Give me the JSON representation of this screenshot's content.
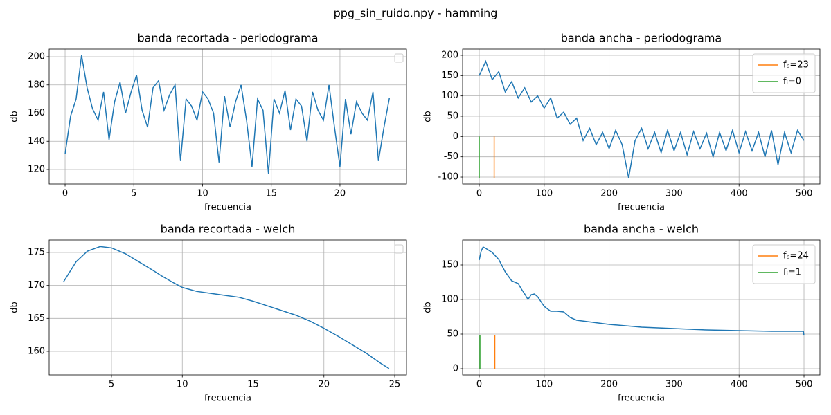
{
  "title": "ppg_sin_ruido.npy - hamming",
  "chart_data": [
    {
      "type": "line",
      "title": "banda recortada - periodograma",
      "xlabel": "frecuencia",
      "ylabel": "db",
      "xlim": [
        -1.16,
        24.84
      ],
      "ylim": [
        109.7,
        205.4
      ],
      "xticks": [
        0,
        5,
        10,
        15,
        20
      ],
      "yticks": [
        120,
        140,
        160,
        180,
        200
      ],
      "grid": true,
      "legend": "upper right",
      "series": [
        {
          "color": "#1f77b4",
          "x": [
            0,
            0.4,
            0.8,
            1.2,
            1.6,
            2,
            2.4,
            2.8,
            3.2,
            3.6,
            4,
            4.4,
            4.8,
            5.2,
            5.6,
            6,
            6.4,
            6.8,
            7.2,
            7.6,
            8,
            8.4,
            8.8,
            9.2,
            9.6,
            10,
            10.4,
            10.8,
            11.2,
            11.6,
            12,
            12.4,
            12.8,
            13.2,
            13.6,
            14,
            14.4,
            14.8,
            15.2,
            15.6,
            16,
            16.4,
            16.8,
            17.2,
            17.6,
            18,
            18.4,
            18.8,
            19.2,
            19.6,
            20,
            20.4,
            20.8,
            21.2,
            21.6,
            22,
            22.4,
            22.8,
            23.2,
            23.6
          ],
          "values": [
            131,
            158,
            170,
            201,
            178,
            163,
            155,
            175,
            141,
            168,
            182,
            160,
            175,
            187,
            162,
            150,
            178,
            183,
            162,
            173,
            180,
            126,
            170,
            165,
            155,
            175,
            170,
            160,
            125,
            172,
            150,
            168,
            180,
            155,
            122,
            170,
            162,
            117,
            170,
            160,
            176,
            148,
            170,
            165,
            140,
            175,
            162,
            155,
            180,
            150,
            122,
            170,
            145,
            168,
            160,
            155,
            175,
            126,
            150,
            171
          ]
        }
      ]
    },
    {
      "type": "line",
      "title": "banda ancha - periodograma",
      "xlabel": "frecuencia",
      "ylabel": "db",
      "xlim": [
        -25.6,
        524.5
      ],
      "ylim": [
        -117,
        215.3
      ],
      "xticks": [
        0,
        100,
        200,
        300,
        400,
        500
      ],
      "yticks": [
        -100,
        -50,
        0,
        50,
        100,
        150,
        200
      ],
      "grid": true,
      "legend": "upper right",
      "series": [
        {
          "color": "#1f77b4",
          "x": [
            0,
            10,
            20,
            30,
            40,
            50,
            60,
            70,
            80,
            90,
            100,
            110,
            120,
            130,
            140,
            150,
            160,
            170,
            180,
            190,
            200,
            210,
            220,
            230,
            240,
            250,
            260,
            270,
            280,
            290,
            300,
            310,
            320,
            330,
            340,
            350,
            360,
            370,
            380,
            390,
            400,
            410,
            420,
            430,
            440,
            450,
            460,
            470,
            480,
            490,
            500
          ],
          "values": [
            150,
            185,
            140,
            160,
            110,
            135,
            95,
            120,
            85,
            100,
            70,
            95,
            45,
            60,
            30,
            45,
            -10,
            20,
            -20,
            10,
            -30,
            15,
            -20,
            -102,
            -10,
            20,
            -30,
            10,
            -40,
            15,
            -35,
            10,
            -45,
            12,
            -30,
            8,
            -50,
            10,
            -35,
            15,
            -40,
            12,
            -35,
            10,
            -50,
            15,
            -70,
            10,
            -40,
            15,
            -10
          ]
        },
        {
          "name": "fₛ=23",
          "color": "#ff7f0e",
          "x": [
            23,
            23
          ],
          "values": [
            -102,
            0
          ]
        },
        {
          "name": "fᵢ=0",
          "color": "#2ca02c",
          "x": [
            0,
            0
          ],
          "values": [
            -102,
            0
          ]
        }
      ]
    },
    {
      "type": "line",
      "title": "banda recortada - welch",
      "xlabel": "frecuencia",
      "ylabel": "db",
      "xlim": [
        0.6,
        25.83
      ],
      "ylim": [
        156.43,
        176.89
      ],
      "xticks": [
        5,
        10,
        15,
        20,
        25
      ],
      "yticks": [
        160,
        165,
        170,
        175
      ],
      "grid": true,
      "legend": "upper right",
      "series": [
        {
          "color": "#1f77b4",
          "x": [
            1.6,
            2.5,
            3.3,
            4.2,
            5,
            6,
            7,
            8,
            8.5,
            9.3,
            10,
            11,
            12,
            13,
            14,
            15,
            16,
            17,
            18,
            19,
            20,
            21,
            22,
            23,
            24,
            24.6
          ],
          "values": [
            170.5,
            173.6,
            175.2,
            175.9,
            175.7,
            174.8,
            173.5,
            172.2,
            171.5,
            170.5,
            169.7,
            169.1,
            168.8,
            168.5,
            168.2,
            167.6,
            166.9,
            166.2,
            165.5,
            164.6,
            163.5,
            162.3,
            161,
            159.7,
            158.2,
            157.4
          ]
        }
      ]
    },
    {
      "type": "line",
      "title": "banda ancha - welch",
      "xlabel": "frecuencia",
      "ylabel": "db",
      "xlim": [
        -25.6,
        524.5
      ],
      "ylim": [
        -9,
        186
      ],
      "xticks": [
        0,
        100,
        200,
        300,
        400,
        500
      ],
      "yticks": [
        0,
        50,
        100,
        150
      ],
      "grid": true,
      "legend": "upper right",
      "series": [
        {
          "color": "#1f77b4",
          "x": [
            0,
            3,
            6,
            10,
            20,
            30,
            40,
            50,
            60,
            65,
            70,
            75,
            80,
            85,
            90,
            100,
            110,
            120,
            130,
            140,
            150,
            200,
            250,
            300,
            350,
            400,
            450,
            499,
            500
          ],
          "values": [
            157,
            170,
            176,
            174,
            168,
            158,
            140,
            127,
            123,
            115,
            108,
            100,
            107,
            108,
            104,
            90,
            83,
            83,
            82,
            74,
            70,
            64,
            60,
            58,
            56,
            55,
            54,
            54,
            48
          ]
        },
        {
          "name": "fₛ=24",
          "color": "#ff7f0e",
          "x": [
            24,
            24
          ],
          "values": [
            0,
            49
          ]
        },
        {
          "name": "fᵢ=1",
          "color": "#2ca02c",
          "x": [
            1,
            1
          ],
          "values": [
            0,
            49
          ]
        }
      ]
    }
  ]
}
